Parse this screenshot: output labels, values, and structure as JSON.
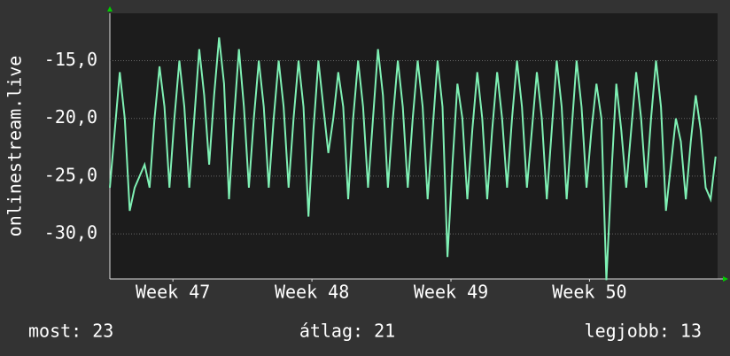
{
  "chart_data": {
    "type": "line",
    "y_label": "onlinestream.live",
    "series": [
      {
        "color": "#7ff0b4",
        "values": [
          -26,
          -21,
          -16,
          -20,
          -28,
          -26,
          -25,
          -24,
          -26,
          -20,
          -15.5,
          -19,
          -26,
          -20,
          -15,
          -19,
          -26,
          -20,
          -14,
          -18,
          -24,
          -18,
          -13,
          -17,
          -27,
          -20,
          -14,
          -19,
          -26,
          -20,
          -15,
          -19,
          -26,
          -20,
          -15,
          -19,
          -26,
          -20,
          -15,
          -19,
          -28.5,
          -21,
          -15,
          -19,
          -23,
          -20,
          -16,
          -19,
          -27,
          -20,
          -15,
          -19,
          -26,
          -20,
          -14,
          -18,
          -26,
          -20,
          -15,
          -19,
          -26,
          -20,
          -15,
          -19,
          -27,
          -21,
          -15,
          -19,
          -32,
          -24,
          -17,
          -20,
          -27,
          -21,
          -16,
          -20,
          -27,
          -21,
          -16,
          -20,
          -26,
          -20,
          -15,
          -19,
          -26,
          -21,
          -16,
          -20,
          -27,
          -21,
          -15,
          -19,
          -27,
          -21,
          -15,
          -19,
          -26,
          -21,
          -17,
          -20,
          -34,
          -25,
          -17,
          -21,
          -26,
          -21,
          -16,
          -20,
          -26,
          -20,
          -15,
          -19,
          -28,
          -24,
          -20,
          -22,
          -27,
          -22,
          -18,
          -21,
          -26,
          -27,
          -23.3
        ]
      }
    ],
    "xlim": [
      0,
      122.4
    ],
    "xticks": [
      {
        "value": 12.7,
        "label": "Week 47"
      },
      {
        "value": 40.7,
        "label": "Week 48"
      },
      {
        "value": 68.7,
        "label": "Week 49"
      },
      {
        "value": 96.6,
        "label": "Week 50"
      }
    ],
    "ylim": [
      -33.9,
      -10.9
    ],
    "yticks": [
      {
        "value": -15,
        "label": "-15,0"
      },
      {
        "value": -20,
        "label": "-20,0"
      },
      {
        "value": -25,
        "label": "-25,0"
      },
      {
        "value": -30,
        "label": "-30,0"
      }
    ],
    "grid": true,
    "annotations": [
      "most: 23",
      "átlag: 21",
      "legjobb: 13"
    ]
  }
}
